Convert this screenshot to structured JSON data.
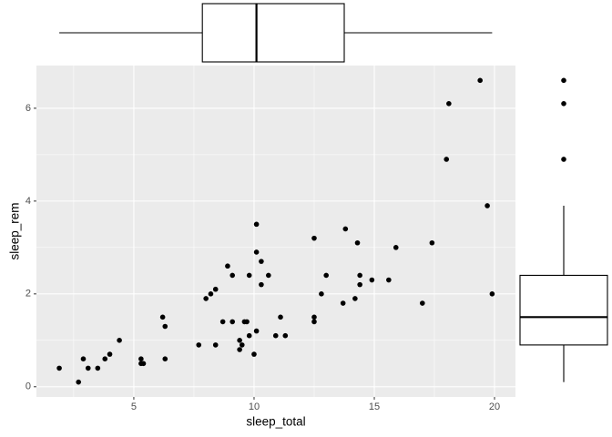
{
  "chart_data": [
    {
      "type": "scatter",
      "x_label": "sleep_total",
      "y_label": "sleep_rem",
      "color": "#000000",
      "grid": true,
      "xlim": [
        0.95,
        20.87
      ],
      "ylim": [
        -0.22,
        6.92
      ],
      "xticks": [
        5,
        10,
        15,
        20
      ],
      "yticks": [
        0,
        2,
        4,
        6
      ],
      "minor_xticks": [
        2.5,
        7.5,
        12.5,
        17.5
      ],
      "minor_yticks": [
        1,
        3,
        5
      ],
      "x": [
        1.9,
        2.7,
        2.9,
        3.1,
        3.5,
        3.8,
        4.0,
        4.4,
        5.3,
        5.3,
        5.4,
        6.2,
        6.3,
        6.3,
        7.7,
        8.0,
        8.2,
        8.4,
        8.4,
        8.7,
        8.9,
        9.1,
        9.1,
        9.4,
        9.4,
        9.5,
        9.6,
        9.7,
        9.8,
        9.8,
        10.0,
        10.1,
        10.1,
        10.1,
        10.3,
        10.3,
        10.6,
        10.9,
        11.1,
        11.3,
        12.5,
        12.5,
        12.5,
        12.8,
        13.0,
        13.7,
        13.8,
        14.2,
        14.3,
        14.4,
        14.4,
        14.9,
        15.6,
        15.9,
        17.0,
        17.4,
        18.0,
        18.1,
        19.4,
        19.7,
        19.9
      ],
      "values": [
        0.4,
        0.1,
        0.6,
        0.4,
        0.4,
        0.6,
        0.7,
        1.0,
        0.6,
        0.5,
        0.5,
        1.5,
        1.3,
        0.6,
        0.9,
        1.9,
        2.0,
        2.1,
        0.9,
        1.4,
        2.6,
        2.4,
        1.4,
        1.0,
        0.8,
        0.9,
        1.4,
        1.4,
        2.4,
        1.1,
        0.7,
        3.5,
        1.2,
        2.9,
        2.7,
        2.2,
        2.4,
        1.1,
        1.5,
        1.1,
        3.2,
        1.5,
        1.4,
        2.0,
        2.4,
        1.8,
        3.4,
        1.9,
        3.1,
        2.4,
        2.2,
        2.3,
        2.3,
        3.0,
        1.8,
        3.1,
        4.9,
        6.1,
        6.6,
        3.9,
        2.0
      ]
    },
    {
      "type": "boxplot",
      "orientation": "horizontal",
      "whisker_low": 1.9,
      "q1": 7.85,
      "median": 10.1,
      "q3": 13.75,
      "whisker_high": 19.9,
      "outliers": []
    },
    {
      "type": "boxplot",
      "orientation": "vertical",
      "whisker_low": 0.1,
      "q1": 0.9,
      "median": 1.5,
      "q3": 2.4,
      "whisker_high": 3.9,
      "outliers": [
        4.9,
        6.1,
        6.6
      ]
    }
  ]
}
